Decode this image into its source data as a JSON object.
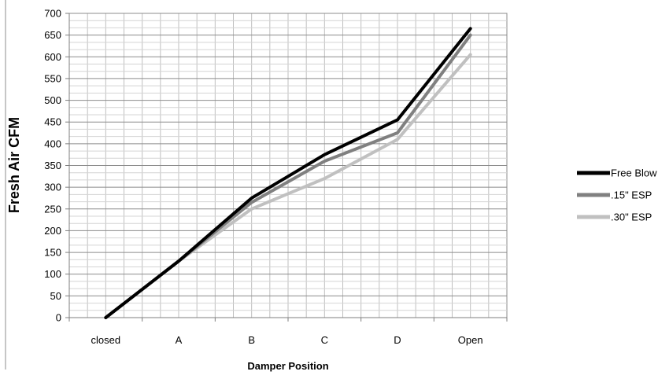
{
  "chart_data": {
    "type": "line",
    "title": "",
    "xlabel": "Damper Position",
    "ylabel": "Fresh Air CFM",
    "categories": [
      "closed",
      "A",
      "B",
      "C",
      "D",
      "Open"
    ],
    "ylim": [
      0,
      700
    ],
    "yticks": [
      0,
      50,
      100,
      150,
      200,
      250,
      300,
      350,
      400,
      450,
      500,
      550,
      600,
      650,
      700
    ],
    "grid": true,
    "legend_position": "right",
    "series": [
      {
        "name": "Free Blow",
        "color": "#000000",
        "values": [
          0,
          130,
          275,
          375,
          455,
          665
        ]
      },
      {
        "name": ".15\" ESP",
        "color": "#808080",
        "values": [
          0,
          130,
          265,
          360,
          425,
          650
        ]
      },
      {
        "name": ".30\" ESP",
        "color": "#c0c0c0",
        "values": [
          0,
          130,
          250,
          320,
          410,
          605
        ]
      }
    ]
  }
}
